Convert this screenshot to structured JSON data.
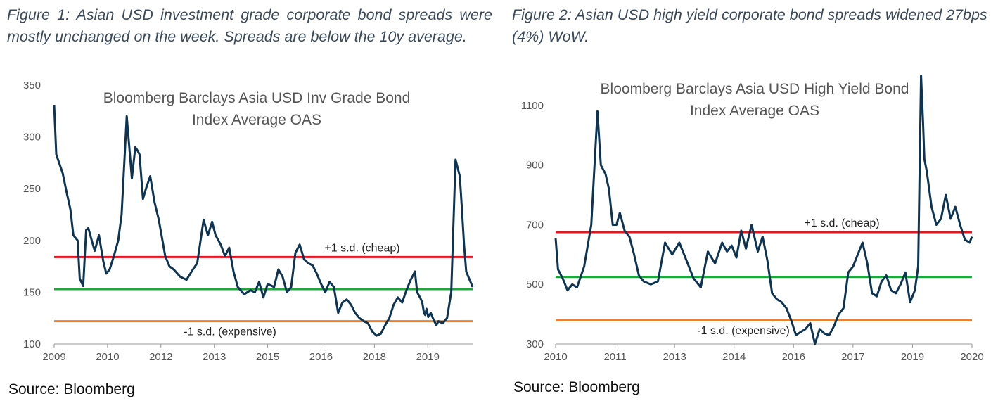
{
  "figures": [
    {
      "caption": "Figure 1: Asian USD investment grade corporate bond spreads were mostly unchanged on the week. Spreads are below the 10y average.",
      "source": "Source: Bloomberg"
    },
    {
      "caption": "Figure 2: Asian USD high yield corporate bond spreads widened 27bps (4%) WoW.",
      "source": "Source: Bloomberg"
    }
  ],
  "chart_data": [
    {
      "type": "line",
      "title_lines": [
        "Bloomberg  Barclays Asia USD Inv Grade Bond",
        "Index Average OAS"
      ],
      "xlabel": "",
      "ylabel": "",
      "x_tick_labels": [
        "2009",
        "2010",
        "2012",
        "2013",
        "2015",
        "2016",
        "2018",
        "2019"
      ],
      "x_tick_values": [
        2009.0,
        2010.25,
        2011.5,
        2012.75,
        2014.0,
        2015.25,
        2016.5,
        2017.75
      ],
      "xlim": [
        2009.0,
        2018.8
      ],
      "ylim": [
        100,
        350
      ],
      "y_ticks": [
        100,
        150,
        200,
        250,
        300,
        350
      ],
      "grid": false,
      "colors": {
        "series": "#0d3553",
        "upper": "#e8141b",
        "mean": "#1ea83c",
        "lower": "#ee7f2d"
      },
      "reference_lines": [
        {
          "label": "+1 s.d. (cheap)",
          "value": 184
        },
        {
          "label": "",
          "value": 153
        },
        {
          "label": "-1 s.d. (expensive)",
          "value": 122
        }
      ],
      "series": [
        {
          "x": [
            2009.0,
            2009.05,
            2009.2,
            2009.3,
            2009.38,
            2009.45,
            2009.55,
            2009.6,
            2009.68,
            2009.75,
            2009.8,
            2009.88,
            2009.95,
            2010.05,
            2010.15,
            2010.22,
            2010.3,
            2010.4,
            2010.5,
            2010.58,
            2010.7,
            2010.82,
            2010.9,
            2010.95,
            2011.0,
            2011.08,
            2011.15,
            2011.25,
            2011.35,
            2011.45,
            2011.6,
            2011.7,
            2011.8,
            2011.95,
            2012.1,
            2012.25,
            2012.35,
            2012.5,
            2012.6,
            2012.7,
            2012.78,
            2012.9,
            2013.0,
            2013.1,
            2013.2,
            2013.3,
            2013.45,
            2013.6,
            2013.7,
            2013.8,
            2013.9,
            2014.0,
            2014.15,
            2014.25,
            2014.35,
            2014.45,
            2014.55,
            2014.65,
            2014.75,
            2014.85,
            2014.95,
            2015.05,
            2015.15,
            2015.25,
            2015.35,
            2015.45,
            2015.55,
            2015.65,
            2015.75,
            2015.85,
            2015.95,
            2016.05,
            2016.15,
            2016.25,
            2016.35,
            2016.45,
            2016.55,
            2016.65,
            2016.75,
            2016.85,
            2016.95,
            2017.05,
            2017.15,
            2017.25,
            2017.35,
            2017.45,
            2017.5,
            2017.58,
            2017.62,
            2017.66,
            2017.69,
            2017.72,
            2017.76,
            2017.82,
            2017.88,
            2017.95,
            2018.0,
            2018.1,
            2018.2,
            2018.3,
            2018.4,
            2018.5,
            2018.55,
            2018.6,
            2018.65,
            2018.7,
            2018.75,
            2018.8
          ],
          "y": [
            331,
            283,
            265,
            245,
            230,
            205,
            200,
            163,
            156,
            210,
            212,
            200,
            190,
            205,
            180,
            168,
            172,
            185,
            200,
            225,
            320,
            260,
            290,
            287,
            283,
            240,
            250,
            262,
            237,
            220,
            185,
            175,
            172,
            165,
            162,
            172,
            178,
            220,
            205,
            218,
            205,
            196,
            185,
            193,
            170,
            155,
            148,
            152,
            150,
            160,
            145,
            158,
            155,
            172,
            165,
            150,
            155,
            188,
            196,
            182,
            178,
            176,
            168,
            158,
            150,
            160,
            155,
            130,
            140,
            143,
            138,
            130,
            125,
            122,
            120,
            112,
            108,
            110,
            118,
            125,
            138,
            145,
            140,
            152,
            162,
            170,
            150,
            144,
            140,
            130,
            128,
            134,
            126,
            130,
            124,
            118,
            122,
            120,
            125,
            150,
            278,
            262,
            230,
            195,
            170,
            165,
            160,
            155
          ]
        }
      ]
    },
    {
      "type": "line",
      "title_lines": [
        "Bloomberg  Barclays Asia USD High Yield Bond",
        "Index Average OAS"
      ],
      "xlabel": "",
      "ylabel": "",
      "x_tick_labels": [
        "2010",
        "2011",
        "2013",
        "2014",
        "2016",
        "2017",
        "2019",
        "2020"
      ],
      "x_tick_values": [
        2010.0,
        2011.25,
        2012.5,
        2013.75,
        2015.0,
        2016.25,
        2017.5,
        2018.75
      ],
      "xlim": [
        2010.0,
        2018.75
      ],
      "ylim": [
        300,
        1180
      ],
      "y_ticks": [
        300,
        500,
        700,
        900,
        1100
      ],
      "grid": false,
      "colors": {
        "series": "#0d3553",
        "upper": "#e8141b",
        "mean": "#1ea83c",
        "lower": "#ee7f2d"
      },
      "reference_lines": [
        {
          "label": "+1 s.d. (cheap)",
          "value": 675
        },
        {
          "label": "",
          "value": 525
        },
        {
          "label": "-1 s.d. (expensive)",
          "value": 380
        }
      ],
      "series": [
        {
          "x": [
            2010.0,
            2010.05,
            2010.15,
            2010.25,
            2010.35,
            2010.45,
            2010.6,
            2010.75,
            2010.88,
            2010.95,
            2011.05,
            2011.12,
            2011.2,
            2011.28,
            2011.35,
            2011.45,
            2011.55,
            2011.65,
            2011.75,
            2011.85,
            2012.0,
            2012.15,
            2012.3,
            2012.45,
            2012.6,
            2012.75,
            2012.9,
            2013.05,
            2013.2,
            2013.35,
            2013.5,
            2013.6,
            2013.7,
            2013.8,
            2013.9,
            2014.0,
            2014.12,
            2014.25,
            2014.35,
            2014.45,
            2014.55,
            2014.65,
            2014.75,
            2014.85,
            2014.95,
            2015.05,
            2015.15,
            2015.25,
            2015.35,
            2015.45,
            2015.55,
            2015.65,
            2015.75,
            2015.85,
            2015.95,
            2016.05,
            2016.15,
            2016.25,
            2016.35,
            2016.45,
            2016.55,
            2016.65,
            2016.75,
            2016.85,
            2016.95,
            2017.05,
            2017.15,
            2017.25,
            2017.35,
            2017.45,
            2017.55,
            2017.62,
            2017.68,
            2017.72,
            2017.75,
            2017.8,
            2017.9,
            2018.0,
            2018.1,
            2018.2,
            2018.3,
            2018.4,
            2018.5,
            2018.6,
            2018.7,
            2018.75
          ],
          "y": [
            655,
            550,
            520,
            480,
            500,
            490,
            560,
            700,
            1080,
            900,
            870,
            820,
            700,
            700,
            740,
            680,
            660,
            600,
            530,
            510,
            500,
            510,
            640,
            600,
            640,
            580,
            520,
            490,
            610,
            570,
            640,
            610,
            630,
            590,
            680,
            620,
            700,
            610,
            660,
            580,
            470,
            450,
            440,
            420,
            380,
            330,
            340,
            350,
            370,
            300,
            350,
            335,
            330,
            360,
            400,
            420,
            540,
            560,
            600,
            640,
            570,
            470,
            460,
            510,
            530,
            480,
            470,
            500,
            540,
            440,
            480,
            560,
            1200,
            1050,
            920,
            880,
            760,
            700,
            720,
            800,
            720,
            760,
            700,
            650,
            640,
            660
          ]
        }
      ]
    }
  ]
}
